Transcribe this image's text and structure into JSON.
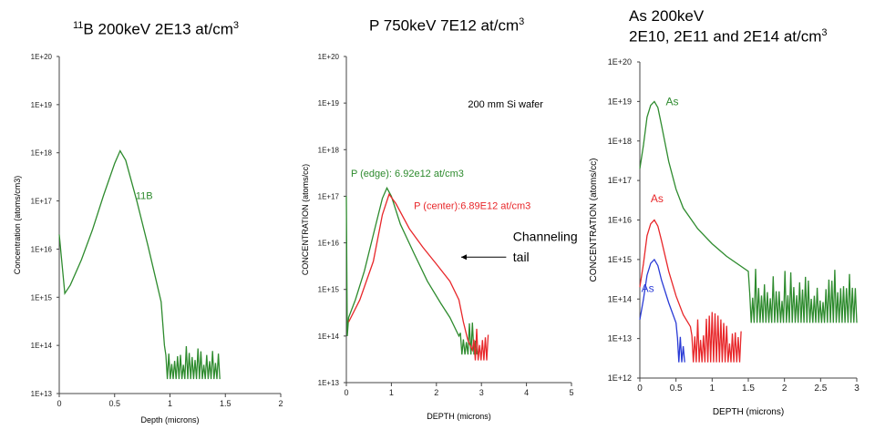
{
  "chart_data": [
    {
      "type": "line",
      "title_sup": "11",
      "title": "B 200keV 2E13 at/cm",
      "title_sup2": "3",
      "xlabel": "Depth (microns)",
      "ylabel": "Concentration (atoms/cm3)",
      "xlim": [
        0,
        2
      ],
      "ylim": [
        13,
        20
      ],
      "y_scale": "log",
      "xticks": [
        "0",
        "0.5",
        "1",
        "1.5",
        "2"
      ],
      "yticks": [
        "1E+13",
        "1E+14",
        "1E+15",
        "1E+16",
        "1E+17",
        "1E+18",
        "1E+19",
        "1E+20"
      ],
      "series": [
        {
          "name": "11B",
          "color": "#2e8b2e",
          "x": [
            0,
            0.05,
            0.1,
            0.2,
            0.3,
            0.4,
            0.5,
            0.55,
            0.6,
            0.7,
            0.8,
            0.87,
            0.92,
            0.95
          ],
          "y": [
            2e+16,
            1200000000000000.0,
            1800000000000000.0,
            6000000000000000.0,
            2.5e+16,
            1.3e+17,
            6e+17,
            1.1e+18,
            7e+17,
            1e+17,
            1.2e+16,
            2500000000000000.0,
            800000000000000.0,
            100000000000000.0
          ],
          "noise_x": [
            0.95,
            1.45
          ],
          "noise_range": [
            20000000000000.0,
            110000000000000.0
          ]
        }
      ],
      "annotations": [
        {
          "text": "11B",
          "x": 0.69,
          "y": 1.1e+17,
          "color": "#2e8b2e"
        }
      ]
    },
    {
      "type": "line",
      "title": "P 750keV 7E12 at/cm",
      "title_sup2": "3",
      "xlabel": "DEPTH (microns)",
      "ylabel": "CONCENTRATION (atoms/cc)",
      "xlim": [
        0,
        5
      ],
      "ylim": [
        13,
        20
      ],
      "y_scale": "log",
      "xticks": [
        "0",
        "1",
        "2",
        "3",
        "4",
        "5"
      ],
      "yticks": [
        "1E+13",
        "1E+14",
        "1E+15",
        "1E+16",
        "1E+17",
        "1E+18",
        "1E+19",
        "1E+20"
      ],
      "series": [
        {
          "name": "P (edge)",
          "color": "#2e8b2e",
          "x": [
            0,
            0.02,
            0.05,
            0.2,
            0.4,
            0.6,
            0.8,
            0.9,
            1.0,
            1.2,
            1.5,
            1.8,
            2.1,
            2.3,
            2.5
          ],
          "y": [
            1e+17,
            100000000000000.0,
            250000000000000.0,
            600000000000000.0,
            2500000000000000.0,
            1.5e+16,
            9e+16,
            1.5e+17,
            1e+17,
            2.5e+16,
            6000000000000000.0,
            1500000000000000.0,
            500000000000000.0,
            250000000000000.0,
            100000000000000.0
          ],
          "noise_x": [
            2.5,
            2.9
          ],
          "noise_range": [
            40000000000000.0,
            200000000000000.0
          ]
        },
        {
          "name": "P (center)",
          "color": "#e8272a",
          "x": [
            0.05,
            0.3,
            0.6,
            0.8,
            0.95,
            1.1,
            1.4,
            1.7,
            2.0,
            2.3,
            2.5,
            2.6,
            2.7,
            2.8
          ],
          "y": [
            200000000000000.0,
            600000000000000.0,
            4000000000000000.0,
            4e+16,
            1.1e+17,
            7e+16,
            2e+16,
            8000000000000000.0,
            3500000000000000.0,
            1500000000000000.0,
            600000000000000.0,
            200000000000000.0,
            80000000000000.0,
            50000000000000.0
          ],
          "noise_x": [
            2.8,
            3.15
          ],
          "noise_range": [
            30000000000000.0,
            150000000000000.0
          ]
        }
      ],
      "annotations": [
        {
          "text": "200 mm Si wafer",
          "x": 2.7,
          "y": 8e+18,
          "color": "#000000"
        },
        {
          "text": "P (edge): 6.92e12 at/cm3",
          "x": 0.1,
          "y": 2.6e+17,
          "color": "#2e8b2e"
        },
        {
          "text": "P (center):6.89E12 at/cm3",
          "x": 1.5,
          "y": 5.3e+16,
          "color": "#e8272a"
        },
        {
          "text": "Channeling",
          "x": 3.7,
          "y": 1.1e+16,
          "color": "#000000"
        },
        {
          "text": "tail",
          "x": 3.7,
          "y": 4000000000000000.0,
          "color": "#000000"
        }
      ]
    },
    {
      "type": "line",
      "title": "As 200keV",
      "title_line2": "2E10, 2E11 and 2E14 at/cm",
      "title_sup2": "3",
      "xlabel": "DEPTH (microns)",
      "ylabel": "CONCENTRATION (atoms/cc)",
      "xlim": [
        0,
        3
      ],
      "ylim": [
        12,
        20
      ],
      "y_scale": "log",
      "xticks": [
        "0",
        "0.5",
        "1",
        "1.5",
        "2",
        "2.5",
        "3"
      ],
      "yticks": [
        "1E+12",
        "1E+13",
        "1E+14",
        "1E+15",
        "1E+16",
        "1E+17",
        "1E+18",
        "1E+19",
        "1E+20"
      ],
      "series": [
        {
          "name": "As 2E14",
          "color": "#2e8b2e",
          "x": [
            0,
            0.05,
            0.1,
            0.15,
            0.2,
            0.25,
            0.3,
            0.4,
            0.5,
            0.6,
            0.8,
            1.0,
            1.2,
            1.5
          ],
          "y": [
            2e+17,
            8e+17,
            4e+18,
            8e+18,
            1e+19,
            7e+18,
            2.5e+18,
            3e+17,
            6e+16,
            2e+16,
            6000000000000000.0,
            2500000000000000.0,
            1200000000000000.0,
            500000000000000.0
          ],
          "noise_x": [
            1.5,
            3.0
          ],
          "noise_range": [
            25000000000000.0,
            600000000000000.0
          ]
        },
        {
          "name": "As 2E11",
          "color": "#e8272a",
          "x": [
            0,
            0.05,
            0.1,
            0.15,
            0.2,
            0.25,
            0.3,
            0.4,
            0.5,
            0.6,
            0.7
          ],
          "y": [
            200000000000000.0,
            800000000000000.0,
            4000000000000000.0,
            8000000000000000.0,
            1e+16,
            7000000000000000.0,
            3000000000000000.0,
            500000000000000.0,
            120000000000000.0,
            40000000000000.0,
            20000000000000.0
          ],
          "noise_x": [
            0.7,
            1.4
          ],
          "noise_range": [
            2500000000000.0,
            50000000000000.0
          ]
        },
        {
          "name": "As 2E10",
          "color": "#2a3bd6",
          "x": [
            0,
            0.05,
            0.1,
            0.15,
            0.2,
            0.25,
            0.3,
            0.4,
            0.5
          ],
          "y": [
            30000000000000.0,
            100000000000000.0,
            400000000000000.0,
            800000000000000.0,
            1000000000000000.0,
            700000000000000.0,
            300000000000000.0,
            80000000000000.0,
            25000000000000.0
          ],
          "noise_x": [
            0.5,
            0.62
          ],
          "noise_range": [
            2500000000000.0,
            15000000000000.0
          ]
        }
      ],
      "annotations": [
        {
          "text": "As",
          "x": 0.36,
          "y": 8e+18,
          "color": "#2e8b2e"
        },
        {
          "text": "As",
          "x": 0.15,
          "y": 2.8e+16,
          "color": "#e8272a"
        },
        {
          "text": "As",
          "x": 0.02,
          "y": 150000000000000.0,
          "color": "#2a3bd6"
        }
      ]
    }
  ]
}
